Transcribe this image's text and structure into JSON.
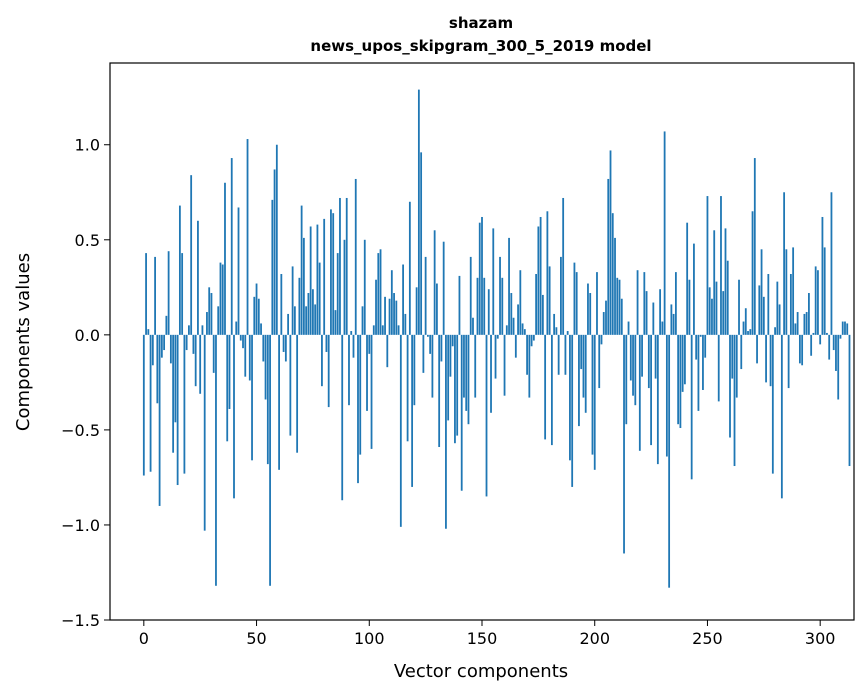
{
  "chart_data": {
    "type": "bar",
    "title": "shazam",
    "subtitle": "news_upos_skipgram_300_5_2019 model",
    "xlabel": "Vector components",
    "ylabel": "Components values",
    "xlim": [
      -15,
      315
    ],
    "ylim": [
      -1.5,
      1.43
    ],
    "xticks": [
      0,
      50,
      100,
      150,
      200,
      250,
      300
    ],
    "yticks": [
      -1.5,
      -1.0,
      -0.5,
      0.0,
      0.5,
      1.0
    ],
    "ytick_labels": [
      "−1.5",
      "−1.0",
      "−0.5",
      "0.0",
      "0.5",
      "1.0"
    ],
    "xtick_labels": [
      "0",
      "50",
      "100",
      "150",
      "200",
      "250",
      "300"
    ],
    "bar_color": "#1f77b4",
    "grid": false,
    "values": [
      -0.74,
      0.43,
      0.03,
      -0.72,
      -0.16,
      0.41,
      -0.36,
      -0.9,
      -0.12,
      -0.08,
      0.1,
      0.44,
      -0.15,
      -0.62,
      -0.46,
      -0.79,
      0.68,
      0.43,
      -0.73,
      -0.08,
      0.05,
      0.84,
      -0.1,
      -0.27,
      0.6,
      -0.31,
      0.05,
      -1.03,
      0.12,
      0.25,
      0.22,
      -0.2,
      -1.32,
      0.15,
      0.38,
      0.37,
      0.8,
      -0.56,
      -0.39,
      0.93,
      -0.86,
      0.07,
      0.67,
      -0.03,
      -0.07,
      -0.22,
      1.03,
      -0.24,
      -0.66,
      0.2,
      0.27,
      0.19,
      0.06,
      -0.14,
      -0.34,
      -0.68,
      -1.32,
      0.71,
      0.87,
      1.0,
      -0.71,
      0.32,
      -0.09,
      -0.14,
      0.11,
      -0.53,
      0.36,
      0.15,
      -0.62,
      0.3,
      0.68,
      0.51,
      0.15,
      0.22,
      0.57,
      0.24,
      0.16,
      0.58,
      0.38,
      -0.27,
      0.61,
      -0.09,
      -0.38,
      0.66,
      0.64,
      0.13,
      0.43,
      0.72,
      -0.87,
      0.5,
      0.72,
      -0.37,
      0.02,
      -0.12,
      0.82,
      -0.78,
      -0.63,
      0.15,
      0.5,
      -0.4,
      -0.1,
      -0.6,
      0.05,
      0.29,
      0.43,
      0.45,
      0.05,
      0.2,
      -0.17,
      0.19,
      0.34,
      0.22,
      0.18,
      0.05,
      -1.01,
      0.37,
      0.11,
      -0.56,
      0.7,
      -0.8,
      -0.37,
      0.25,
      1.29,
      0.96,
      -0.2,
      0.41,
      -0.01,
      -0.1,
      -0.33,
      0.55,
      0.27,
      -0.59,
      -0.14,
      0.49,
      -1.02,
      -0.45,
      -0.22,
      -0.06,
      -0.57,
      -0.53,
      0.31,
      -0.82,
      -0.33,
      -0.4,
      -0.47,
      0.41,
      0.09,
      -0.33,
      0.3,
      0.59,
      0.62,
      0.3,
      -0.85,
      0.24,
      -0.41,
      0.56,
      -0.23,
      -0.02,
      0.41,
      0.3,
      -0.32,
      0.05,
      0.51,
      0.22,
      0.09,
      -0.12,
      0.16,
      0.34,
      0.06,
      0.03,
      -0.21,
      -0.33,
      -0.06,
      -0.03,
      0.32,
      0.57,
      0.62,
      0.21,
      -0.55,
      0.65,
      0.36,
      -0.58,
      0.11,
      0.04,
      -0.21,
      0.41,
      0.72,
      -0.21,
      0.02,
      -0.66,
      -0.8,
      0.38,
      0.33,
      -0.48,
      -0.18,
      -0.33,
      -0.41,
      0.27,
      0.22,
      -0.63,
      -0.71,
      0.33,
      -0.28,
      -0.05,
      0.12,
      0.18,
      0.82,
      0.97,
      0.64,
      0.51,
      0.3,
      0.29,
      0.19,
      -1.15,
      -0.47,
      0.07,
      -0.24,
      -0.32,
      -0.37,
      0.34,
      -0.61,
      -0.22,
      0.33,
      0.23,
      -0.28,
      -0.58,
      0.17,
      -0.23,
      -0.68,
      0.24,
      0.07,
      1.07,
      -0.64,
      -1.33,
      0.16,
      0.11,
      0.33,
      -0.47,
      -0.49,
      -0.3,
      -0.26,
      0.59,
      0.29,
      -0.76,
      0.48,
      -0.13,
      -0.4,
      -0.01,
      -0.29,
      -0.12,
      0.73,
      0.25,
      0.19,
      0.55,
      0.28,
      -0.35,
      0.73,
      0.23,
      0.56,
      0.39,
      -0.54,
      -0.23,
      -0.69,
      -0.33,
      0.29,
      -0.18,
      0.07,
      0.14,
      0.02,
      0.03,
      0.65,
      0.93,
      -0.15,
      0.26,
      0.45,
      0.2,
      -0.25,
      0.32,
      -0.27,
      -0.73,
      0.04,
      0.28,
      0.16,
      -0.86,
      0.75,
      0.45,
      -0.28,
      0.32,
      0.46,
      0.06,
      0.12,
      -0.15,
      -0.16,
      0.11,
      0.12,
      0.22,
      -0.11,
      0.01,
      0.36,
      0.34,
      -0.05,
      0.62,
      0.46,
      0.01,
      -0.13,
      0.75,
      -0.08,
      -0.19,
      -0.34,
      -0.02,
      0.07,
      0.07,
      0.06,
      -0.69
    ]
  }
}
